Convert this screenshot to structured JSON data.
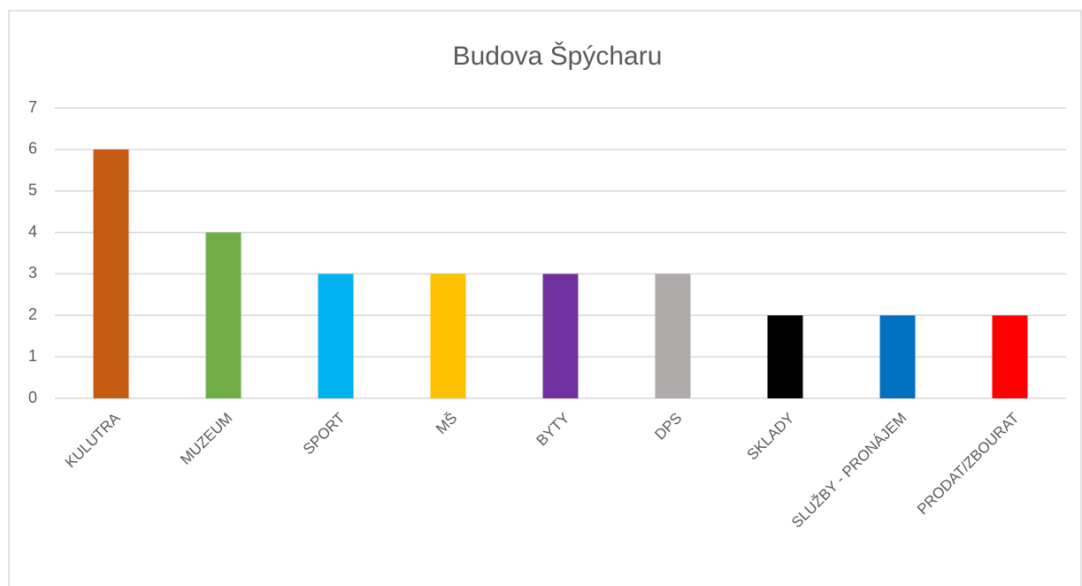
{
  "chart_data": {
    "type": "bar",
    "title": "Budova Špýcharu",
    "categories": [
      "KULUTRA",
      "MUZEUM",
      "SPORT",
      "MŠ",
      "BYTY",
      "DPS",
      "SKLADY",
      "SLUŽBY - PRONÁJEM",
      "PRODAT/ZBOURAT"
    ],
    "values": [
      6,
      4,
      3,
      3,
      3,
      3,
      2,
      2,
      2
    ],
    "colors": [
      "#c55a11",
      "#70ad47",
      "#00b0f0",
      "#ffc000",
      "#7030a0",
      "#aeaaaa",
      "#000000",
      "#0070c0",
      "#ff0000"
    ],
    "ylim": [
      0,
      7
    ],
    "yticks": [
      0,
      1,
      2,
      3,
      4,
      5,
      6,
      7
    ],
    "grid": true
  }
}
